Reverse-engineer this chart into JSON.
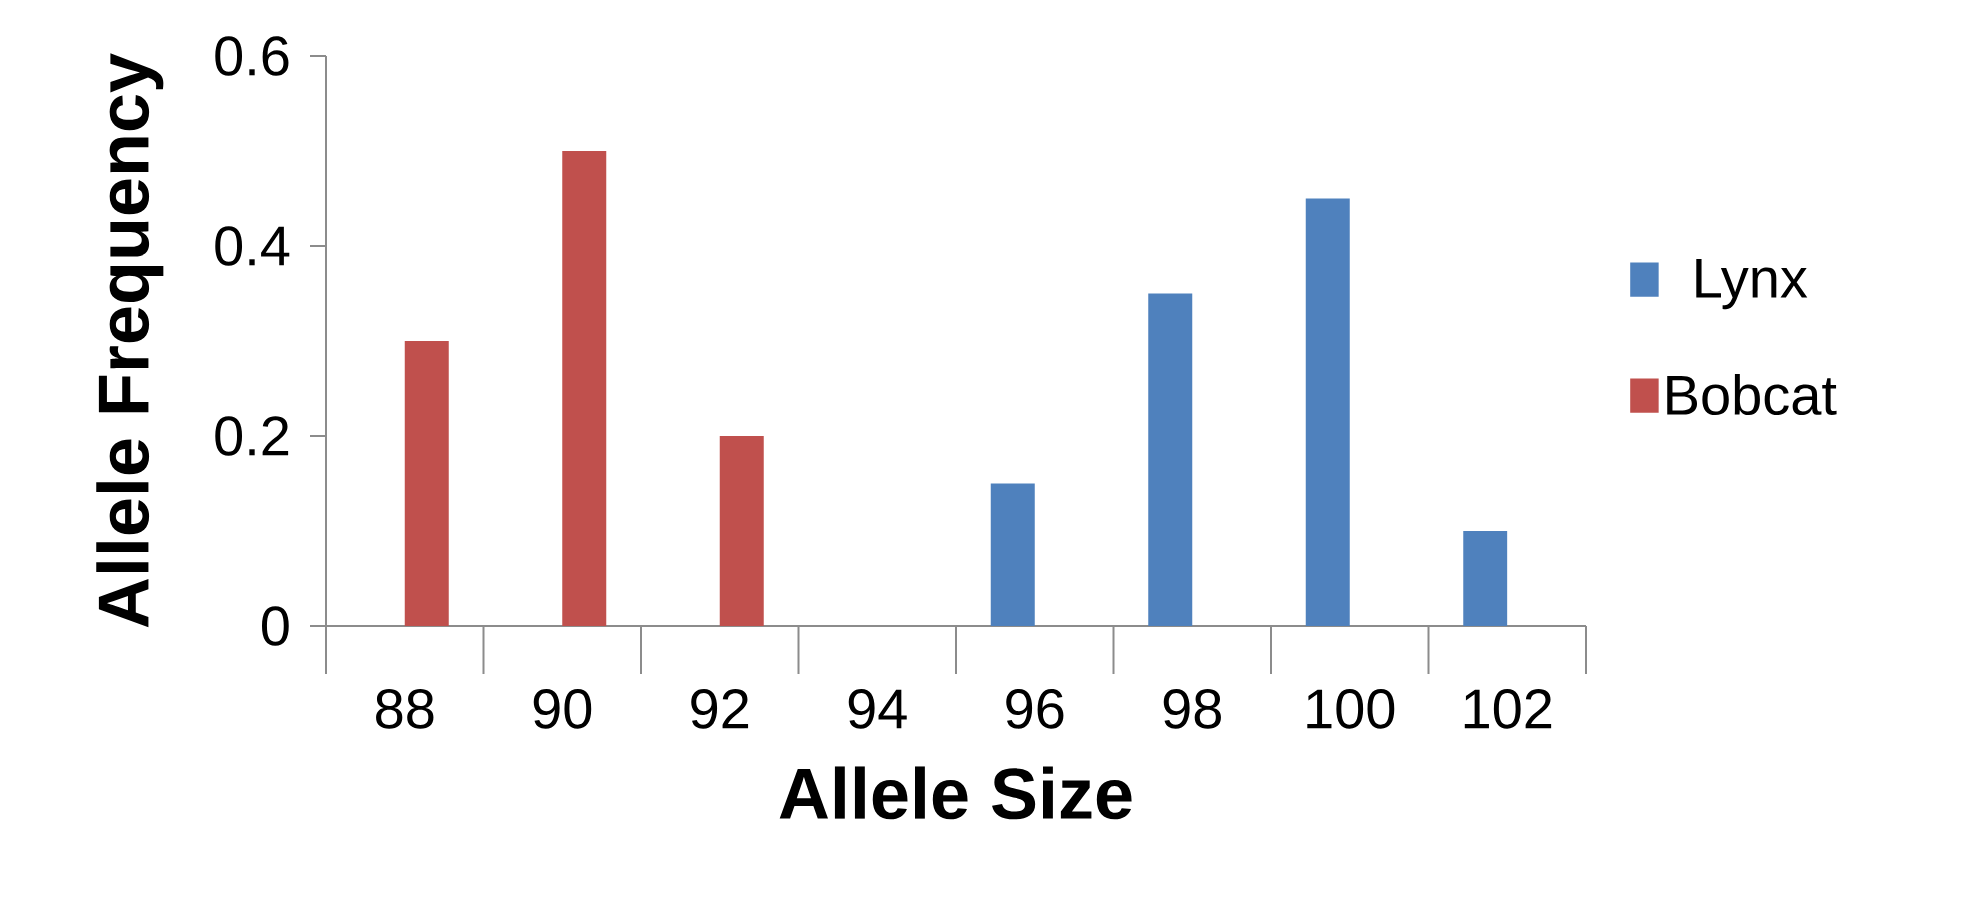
{
  "chart_data": {
    "type": "bar",
    "xlabel": "Allele Size",
    "ylabel": "Allele Frequency",
    "categories": [
      "88",
      "90",
      "92",
      "94",
      "96",
      "98",
      "100",
      "102"
    ],
    "series": [
      {
        "name": "Lynx",
        "color": "#4f81bd",
        "values": [
          null,
          null,
          null,
          null,
          0.15,
          0.35,
          0.45,
          0.1
        ]
      },
      {
        "name": "Bobcat",
        "color": "#c0504d",
        "values": [
          0.3,
          0.5,
          0.2,
          null,
          null,
          null,
          null,
          null
        ]
      }
    ],
    "ylim": [
      0,
      0.6
    ],
    "yticks": [
      0,
      0.2,
      0.4,
      0.6
    ],
    "grid": false,
    "legend": "right"
  }
}
